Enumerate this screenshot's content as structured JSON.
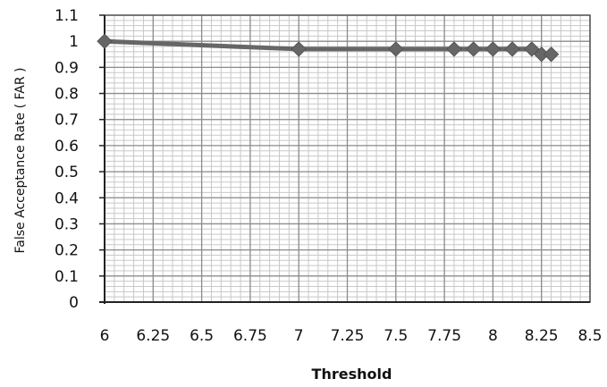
{
  "chart_data": {
    "type": "line",
    "title": "",
    "xlabel": "Threshold",
    "ylabel": "False Acceptance Rate ( FAR )",
    "xlim": [
      6,
      8.5
    ],
    "ylim": [
      0,
      1.1
    ],
    "x_ticks": [
      "6",
      "6.25",
      "6.5",
      "6.75",
      "7",
      "7.25",
      "7.5",
      "7.75",
      "8",
      "8.25",
      "8.5"
    ],
    "y_ticks": [
      "0",
      "0.1",
      "0.2",
      "0.3",
      "0.4",
      "0.5",
      "0.6",
      "0.7",
      "0.8",
      "0.9",
      "1",
      "1.1"
    ],
    "grid": true,
    "legend": "none",
    "series": [
      {
        "marker": "diamond",
        "color": "#666666",
        "x": [
          6,
          7,
          7.5,
          7.8,
          7.9,
          8,
          8.1,
          8.2,
          8.25,
          8.3
        ],
        "y": [
          1,
          0.97,
          0.97,
          0.97,
          0.97,
          0.97,
          0.97,
          0.97,
          0.95,
          0.95
        ]
      }
    ]
  }
}
